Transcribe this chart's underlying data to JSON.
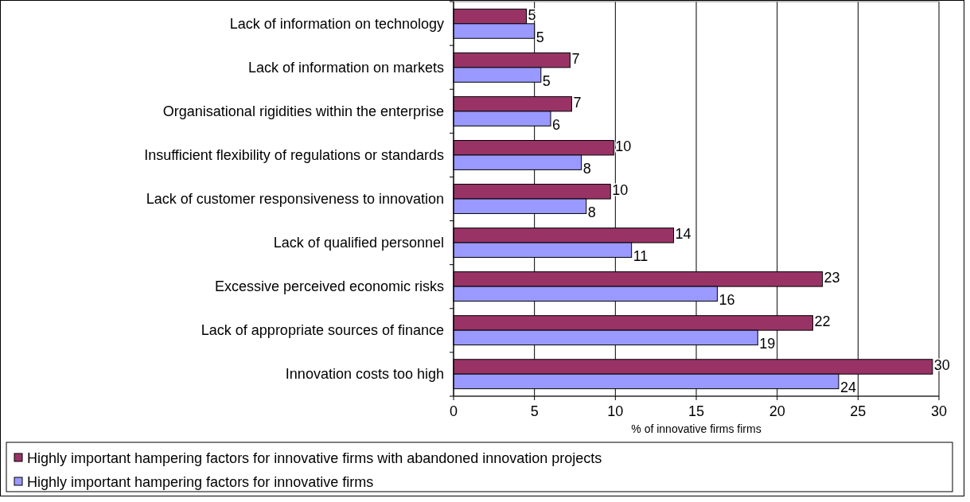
{
  "chart_data": {
    "type": "bar",
    "orientation": "horizontal",
    "xlabel": "% of innovative firms firms",
    "categories": [
      "Lack of information on technology",
      "Lack of information on markets",
      "Organisational rigidities within the enterprise",
      "Insufficient flexibility of regulations or standards",
      "Lack of customer responsiveness to innovation",
      "Lack of qualified personnel",
      "Excessive perceived economic risks",
      "Lack of appropriate sources of finance",
      "Innovation costs too high"
    ],
    "series": [
      {
        "name": "Highly important hampering factors for innovative firms with abandoned innovation projects",
        "color": "#993366",
        "values": [
          4.5,
          7.2,
          7.3,
          9.9,
          9.7,
          13.6,
          22.8,
          22.2,
          29.6
        ],
        "value_labels": [
          "5",
          "7",
          "7",
          "10",
          "10",
          "14",
          "23",
          "22",
          "30"
        ]
      },
      {
        "name": "Highly important hampering factors for innovative firms",
        "color": "#9999ff",
        "values": [
          5.0,
          5.4,
          6.0,
          7.9,
          8.2,
          11.0,
          16.3,
          18.8,
          23.8
        ],
        "value_labels": [
          "5",
          "5",
          "6",
          "8",
          "8",
          "11",
          "16",
          "19",
          "24"
        ]
      }
    ],
    "xlim": [
      0,
      30
    ],
    "xticks": [
      0,
      5,
      10,
      15,
      20,
      25,
      30
    ],
    "grid": "x",
    "legend": "bottom"
  }
}
